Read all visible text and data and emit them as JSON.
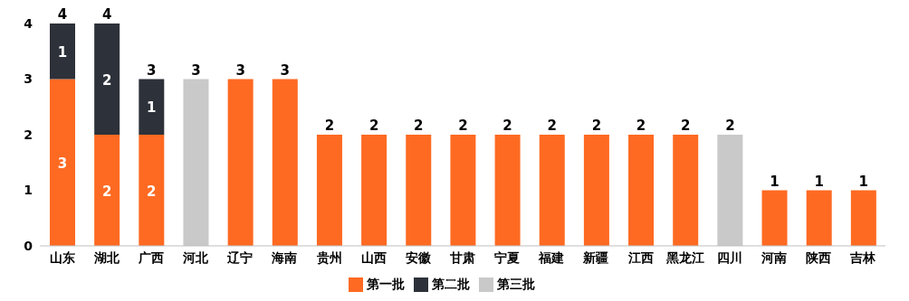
{
  "chart_data": {
    "type": "bar",
    "stacked": true,
    "categories": [
      "山东",
      "湖北",
      "广西",
      "河北",
      "辽宁",
      "海南",
      "贵州",
      "山西",
      "安徽",
      "甘肃",
      "宁夏",
      "福建",
      "新疆",
      "江西",
      "黑龙江",
      "四川",
      "河南",
      "陕西",
      "吉林"
    ],
    "series": [
      {
        "name": "第一批",
        "color": "#fe6a22",
        "values": [
          3,
          2,
          2,
          null,
          3,
          3,
          2,
          2,
          2,
          2,
          2,
          2,
          2,
          2,
          2,
          null,
          1,
          1,
          1
        ],
        "value_labels": [
          "3",
          "2",
          "2",
          null,
          null,
          null,
          null,
          null,
          null,
          null,
          null,
          null,
          null,
          null,
          null,
          null,
          null,
          null,
          null
        ]
      },
      {
        "name": "第二批",
        "color": "#2d3139",
        "values": [
          1,
          2,
          1,
          null,
          null,
          null,
          null,
          null,
          null,
          null,
          null,
          null,
          null,
          null,
          null,
          null,
          null,
          null,
          null
        ],
        "value_labels": [
          "1",
          "2",
          "1",
          null,
          null,
          null,
          null,
          null,
          null,
          null,
          null,
          null,
          null,
          null,
          null,
          null,
          null,
          null,
          null
        ]
      },
      {
        "name": "第三批",
        "color": "#c9c9c9",
        "values": [
          null,
          null,
          null,
          3,
          null,
          null,
          null,
          null,
          null,
          null,
          null,
          null,
          null,
          null,
          null,
          2,
          null,
          null,
          null
        ],
        "value_labels": [
          null,
          null,
          null,
          null,
          null,
          null,
          null,
          null,
          null,
          null,
          null,
          null,
          null,
          null,
          null,
          null,
          null,
          null,
          null
        ]
      }
    ],
    "totals": [
      "4",
      "4",
      "3",
      "3",
      "3",
      "3",
      "2",
      "2",
      "2",
      "2",
      "2",
      "2",
      "2",
      "2",
      "2",
      "2",
      "1",
      "1",
      "1"
    ],
    "ylim": [
      0,
      4
    ],
    "yticks": [
      0,
      1,
      2,
      3,
      4
    ],
    "grid": false,
    "legend": "bottom"
  }
}
